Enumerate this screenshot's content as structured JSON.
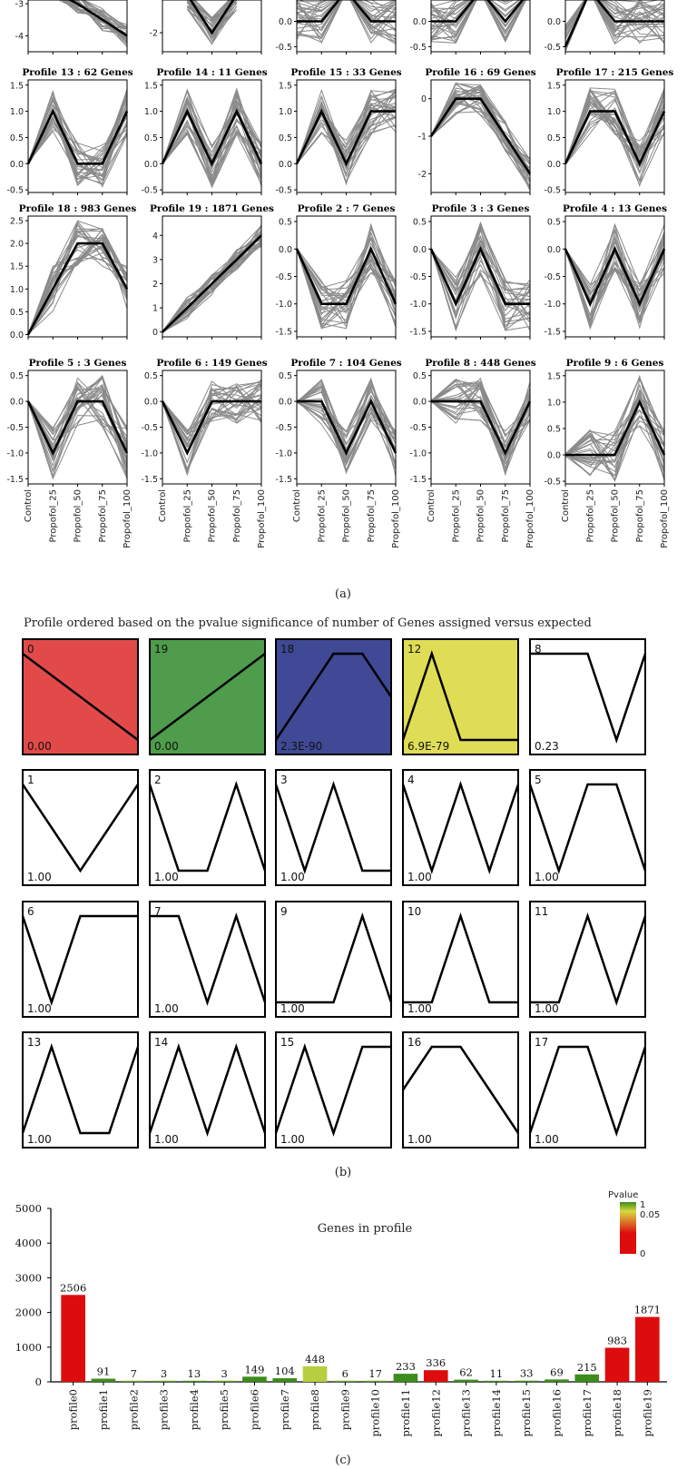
{
  "chart_data": [
    {
      "type": "line",
      "panel": "a",
      "caption": "(a)",
      "x_categories": [
        "Control",
        "Propofol_25",
        "Propofol_50",
        "Propofol_75",
        "Propofol_100"
      ],
      "profiles": [
        {
          "id": "r0c0",
          "title": "",
          "ylim": [
            -4.5,
            -2.6
          ],
          "yticks": [
            -4,
            -3
          ],
          "mean": [
            null,
            -2.5,
            -3.0,
            -3.5,
            -4.0
          ],
          "band": [
            0.25,
            0.35
          ]
        },
        {
          "id": "r0c1",
          "title": "",
          "ylim": [
            -2.5,
            -0.9
          ],
          "yticks": [
            -2
          ],
          "mean": [
            null,
            -1.0,
            -2.0,
            -1.0,
            null
          ],
          "band": [
            0.35,
            0.4
          ]
        },
        {
          "id": "r0c2",
          "title": "",
          "ylim": [
            -0.6,
            0.6
          ],
          "yticks": [
            -0.5,
            0.0,
            0.5
          ],
          "mean": [
            0.0,
            0.0,
            1.0,
            0.0,
            0.0
          ],
          "band": [
            0.3,
            0.45
          ]
        },
        {
          "id": "r0c3",
          "title": "",
          "ylim": [
            -0.6,
            0.6
          ],
          "yticks": [
            -0.5,
            0.0,
            0.5
          ],
          "mean": [
            0.0,
            0.0,
            1.0,
            0.0,
            1.0
          ],
          "band": [
            0.3,
            0.45
          ]
        },
        {
          "id": "r0c4",
          "title": "",
          "ylim": [
            -0.6,
            0.6
          ],
          "yticks": [
            -0.5,
            0.0,
            0.5
          ],
          "mean": [
            -0.5,
            1.0,
            0.0,
            0.0,
            0.0
          ],
          "band": [
            0.3,
            0.45
          ]
        },
        {
          "id": "p13",
          "title": "Profile 13 : 62 Genes",
          "ylim": [
            -0.55,
            1.6
          ],
          "yticks": [
            -0.5,
            0.0,
            0.5,
            1.0,
            1.5
          ],
          "mean": [
            0,
            1,
            0,
            0,
            1
          ],
          "band": [
            0.35,
            0.45
          ]
        },
        {
          "id": "p14",
          "title": "Profile 14 : 11 Genes",
          "ylim": [
            -0.55,
            1.6
          ],
          "yticks": [
            -0.5,
            0.0,
            0.5,
            1.0,
            1.5
          ],
          "mean": [
            0,
            1,
            0,
            1,
            0
          ],
          "band": [
            0.35,
            0.45
          ]
        },
        {
          "id": "p15",
          "title": "Profile 15 : 33 Genes",
          "ylim": [
            -0.55,
            1.6
          ],
          "yticks": [
            -0.5,
            0.0,
            0.5,
            1.0,
            1.5
          ],
          "mean": [
            0,
            1,
            0,
            1,
            1
          ],
          "band": [
            0.35,
            0.45
          ]
        },
        {
          "id": "p16",
          "title": "Profile 16 : 69 Genes",
          "ylim": [
            -2.5,
            0.5
          ],
          "yticks": [
            -2,
            -1,
            0
          ],
          "mean": [
            -1,
            0,
            0,
            -1,
            -2
          ],
          "band": [
            0.3,
            0.45
          ]
        },
        {
          "id": "p17",
          "title": "Profile 17 : 215 Genes",
          "ylim": [
            -0.55,
            1.6
          ],
          "yticks": [
            -0.5,
            0.0,
            0.5,
            1.0,
            1.5
          ],
          "mean": [
            0,
            1,
            1,
            0,
            1
          ],
          "band": [
            0.35,
            0.45
          ]
        },
        {
          "id": "p18",
          "title": "Profile 18 : 983 Genes",
          "ylim": [
            -0.05,
            2.6
          ],
          "yticks": [
            0.0,
            0.5,
            1.0,
            1.5,
            2.0,
            2.5
          ],
          "mean": [
            0,
            1,
            2,
            2,
            1
          ],
          "band": [
            0.45,
            0.5
          ]
        },
        {
          "id": "p19",
          "title": "Profile 19 : 1871 Genes",
          "ylim": [
            -0.2,
            4.8
          ],
          "yticks": [
            0,
            1,
            2,
            3,
            4
          ],
          "mean": [
            0,
            1,
            2,
            3,
            4
          ],
          "band": [
            0.4,
            0.45
          ]
        },
        {
          "id": "p2",
          "title": "Profile 2 : 7 Genes",
          "ylim": [
            -1.6,
            0.6
          ],
          "yticks": [
            -1.5,
            -1.0,
            -0.5,
            0.0,
            0.5
          ],
          "mean": [
            0,
            -1,
            -1,
            0,
            -1
          ],
          "band": [
            0.35,
            0.45
          ]
        },
        {
          "id": "p3",
          "title": "Profile 3 : 3 Genes",
          "ylim": [
            -1.6,
            0.6
          ],
          "yticks": [
            -1.5,
            -1.0,
            -0.5,
            0.0,
            0.5
          ],
          "mean": [
            0,
            -1,
            0,
            -1,
            -1
          ],
          "band": [
            0.4,
            0.5
          ]
        },
        {
          "id": "p4",
          "title": "Profile 4 : 13 Genes",
          "ylim": [
            -1.6,
            0.6
          ],
          "yticks": [
            -1.5,
            -1.0,
            -0.5,
            0.0,
            0.5
          ],
          "mean": [
            0,
            -1,
            0,
            -1,
            0
          ],
          "band": [
            0.35,
            0.45
          ]
        },
        {
          "id": "p5",
          "title": "Profile 5 : 3 Genes",
          "ylim": [
            -1.6,
            0.6
          ],
          "yticks": [
            -1.5,
            -1.0,
            -0.5,
            0.0,
            0.5
          ],
          "mean": [
            0,
            -1,
            0,
            0,
            -1
          ],
          "band": [
            0.4,
            0.5
          ]
        },
        {
          "id": "p6",
          "title": "Profile 6 : 149 Genes",
          "ylim": [
            -1.6,
            0.6
          ],
          "yticks": [
            -1.5,
            -1.0,
            -0.5,
            0.0,
            0.5
          ],
          "mean": [
            0,
            -1,
            0,
            0,
            0
          ],
          "band": [
            0.35,
            0.45
          ]
        },
        {
          "id": "p7",
          "title": "Profile 7 : 104 Genes",
          "ylim": [
            -1.6,
            0.6
          ],
          "yticks": [
            -1.5,
            -1.0,
            -0.5,
            0.0,
            0.5
          ],
          "mean": [
            0,
            0,
            -1,
            0,
            -1
          ],
          "band": [
            0.4,
            0.45
          ]
        },
        {
          "id": "p8",
          "title": "Profile 8 : 448 Genes",
          "ylim": [
            -1.6,
            0.6
          ],
          "yticks": [
            -1.5,
            -1.0,
            -0.5,
            0.0,
            0.5
          ],
          "mean": [
            0,
            0,
            0,
            -1,
            0
          ],
          "band": [
            0.4,
            0.45
          ]
        },
        {
          "id": "p9",
          "title": "Profile 9 : 6 Genes",
          "ylim": [
            -0.55,
            1.6
          ],
          "yticks": [
            -0.5,
            0.0,
            0.5,
            1.0,
            1.5
          ],
          "mean": [
            0,
            0,
            0,
            1,
            0
          ],
          "band": [
            0.4,
            0.5
          ]
        }
      ]
    },
    {
      "type": "line",
      "panel": "b",
      "title": "Profile ordered based on the pvalue significance of number of Genes assigned versus expected",
      "caption": "(b)",
      "profiles": [
        {
          "num": "0",
          "p": "0.00",
          "color": "#e24a4a",
          "pts": [
            1,
            0.5,
            0
          ]
        },
        {
          "num": "19",
          "p": "0.00",
          "color": "#4e9c4c",
          "pts": [
            0,
            0.25,
            0.5,
            0.75,
            1
          ]
        },
        {
          "num": "18",
          "p": "2.3E-90",
          "color": "#3f4995",
          "pts": [
            0,
            0.5,
            1,
            1,
            0.5
          ]
        },
        {
          "num": "12",
          "p": "6.9E-79",
          "color": "#dedd55",
          "pts": [
            0,
            1,
            0,
            0,
            0
          ]
        },
        {
          "num": "8",
          "p": "0.23",
          "color": "#ffffff",
          "pts": [
            1,
            1,
            1,
            0,
            1
          ]
        },
        {
          "num": "1",
          "p": "1.00",
          "color": "#ffffff",
          "pts": [
            1,
            0.5,
            0,
            0.5,
            1
          ]
        },
        {
          "num": "2",
          "p": "1.00",
          "color": "#ffffff",
          "pts": [
            1,
            0,
            0,
            1,
            0
          ]
        },
        {
          "num": "3",
          "p": "1.00",
          "color": "#ffffff",
          "pts": [
            1,
            0,
            1,
            0,
            0
          ]
        },
        {
          "num": "4",
          "p": "1.00",
          "color": "#ffffff",
          "pts": [
            1,
            0,
            1,
            0,
            1
          ]
        },
        {
          "num": "5",
          "p": "1.00",
          "color": "#ffffff",
          "pts": [
            1,
            0,
            1,
            1,
            0
          ]
        },
        {
          "num": "6",
          "p": "1.00",
          "color": "#ffffff",
          "pts": [
            1,
            0,
            1,
            1,
            1
          ]
        },
        {
          "num": "7",
          "p": "1.00",
          "color": "#ffffff",
          "pts": [
            1,
            1,
            0,
            1,
            0
          ]
        },
        {
          "num": "9",
          "p": "1.00",
          "color": "#ffffff",
          "pts": [
            0,
            0,
            0,
            1,
            0
          ]
        },
        {
          "num": "10",
          "p": "1.00",
          "color": "#ffffff",
          "pts": [
            0,
            0,
            1,
            0,
            0
          ]
        },
        {
          "num": "11",
          "p": "1.00",
          "color": "#ffffff",
          "pts": [
            0,
            0,
            1,
            0,
            1
          ]
        },
        {
          "num": "13",
          "p": "1.00",
          "color": "#ffffff",
          "pts": [
            0,
            1,
            0,
            0,
            1
          ]
        },
        {
          "num": "14",
          "p": "1.00",
          "color": "#ffffff",
          "pts": [
            0,
            1,
            0,
            1,
            0
          ]
        },
        {
          "num": "15",
          "p": "1.00",
          "color": "#ffffff",
          "pts": [
            0,
            1,
            0,
            1,
            1
          ]
        },
        {
          "num": "16",
          "p": "1.00",
          "color": "#ffffff",
          "pts": [
            1,
            2,
            2,
            1,
            0
          ]
        },
        {
          "num": "17",
          "p": "1.00",
          "color": "#ffffff",
          "pts": [
            0,
            1,
            1,
            0,
            1
          ]
        }
      ]
    },
    {
      "type": "bar",
      "panel": "c",
      "title": "Genes in profile",
      "caption": "(c)",
      "categories": [
        "profile0",
        "profile1",
        "profile2",
        "profile3",
        "profile4",
        "profile5",
        "profile6",
        "profile7",
        "profile8",
        "profile9",
        "profile10",
        "profile11",
        "profile12",
        "profile13",
        "profile14",
        "profile15",
        "profile16",
        "profile17",
        "profile18",
        "profile19"
      ],
      "values": [
        2506,
        91,
        7,
        3,
        13,
        3,
        149,
        104,
        448,
        6,
        17,
        233,
        336,
        62,
        11,
        33,
        69,
        215,
        983,
        1871
      ],
      "value_labels": [
        "2506",
        "91",
        "7",
        "3",
        "13",
        "3",
        "149",
        "104",
        "448",
        "6",
        "17",
        "233",
        "336",
        "62",
        "11",
        "33",
        "69",
        "215",
        "983",
        "1871"
      ],
      "colors": [
        "#dd0d0d",
        "#3d8c1b",
        "#6aa020",
        "#5a9a1e",
        "#3d8c1b",
        "#5a9a1e",
        "#3d8c1b",
        "#3d8c1b",
        "#b7cf3f",
        "#62a01c",
        "#5fa020",
        "#3d8c1b",
        "#dd0d0d",
        "#3d8c1b",
        "#3d8c1b",
        "#3d8c1b",
        "#3d8c1b",
        "#3d8c1b",
        "#dd0d0d",
        "#dd0d0d"
      ],
      "ylim": [
        0,
        5000
      ],
      "yticks": [
        0,
        1000,
        2000,
        3000,
        4000,
        5000
      ],
      "legend": {
        "title": "Pvalue",
        "labels": [
          "1",
          "0.05",
          "0"
        ],
        "colors": [
          "#3d8c1b",
          "#d8d840",
          "#dd0d0d"
        ],
        "placement": "top-right"
      }
    }
  ]
}
